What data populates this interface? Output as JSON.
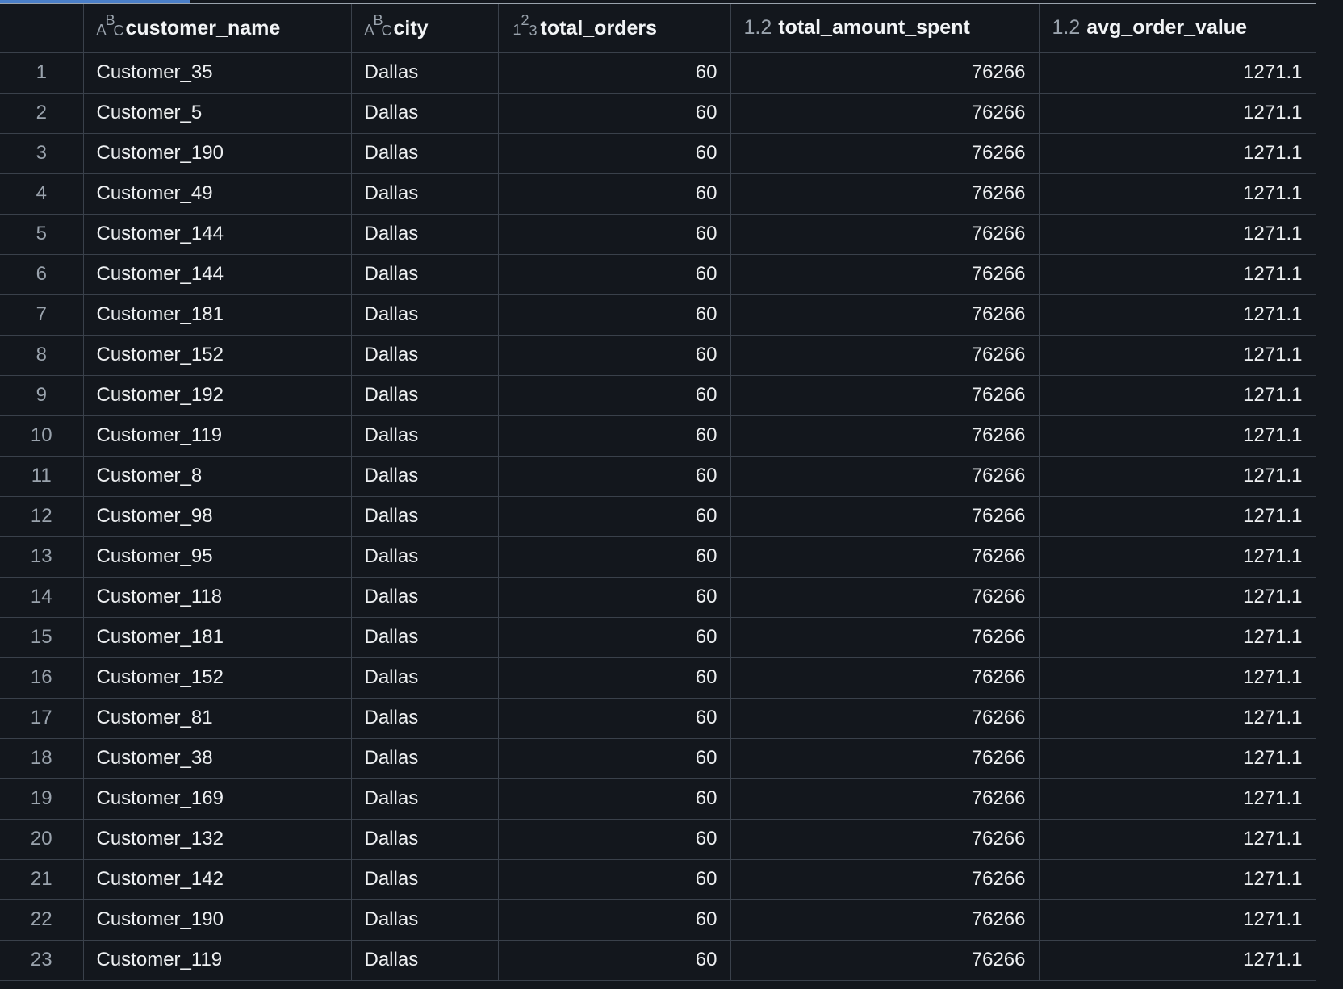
{
  "columns": [
    {
      "name": "customer_name",
      "type_icon": "text-type-icon",
      "type_label": "ABC"
    },
    {
      "name": "city",
      "type_icon": "text-type-icon",
      "type_label": "ABC"
    },
    {
      "name": "total_orders",
      "type_icon": "integer-type-icon",
      "type_label": "123"
    },
    {
      "name": "total_amount_spent",
      "type_icon": "decimal-type-icon",
      "type_label": "1.2"
    },
    {
      "name": "avg_order_value",
      "type_icon": "decimal-type-icon",
      "type_label": "1.2"
    }
  ],
  "rows": [
    {
      "idx": "1",
      "customer_name": "Customer_35",
      "city": "Dallas",
      "total_orders": "60",
      "total_amount_spent": "76266",
      "avg_order_value": "1271.1"
    },
    {
      "idx": "2",
      "customer_name": "Customer_5",
      "city": "Dallas",
      "total_orders": "60",
      "total_amount_spent": "76266",
      "avg_order_value": "1271.1"
    },
    {
      "idx": "3",
      "customer_name": "Customer_190",
      "city": "Dallas",
      "total_orders": "60",
      "total_amount_spent": "76266",
      "avg_order_value": "1271.1"
    },
    {
      "idx": "4",
      "customer_name": "Customer_49",
      "city": "Dallas",
      "total_orders": "60",
      "total_amount_spent": "76266",
      "avg_order_value": "1271.1"
    },
    {
      "idx": "5",
      "customer_name": "Customer_144",
      "city": "Dallas",
      "total_orders": "60",
      "total_amount_spent": "76266",
      "avg_order_value": "1271.1"
    },
    {
      "idx": "6",
      "customer_name": "Customer_144",
      "city": "Dallas",
      "total_orders": "60",
      "total_amount_spent": "76266",
      "avg_order_value": "1271.1"
    },
    {
      "idx": "7",
      "customer_name": "Customer_181",
      "city": "Dallas",
      "total_orders": "60",
      "total_amount_spent": "76266",
      "avg_order_value": "1271.1"
    },
    {
      "idx": "8",
      "customer_name": "Customer_152",
      "city": "Dallas",
      "total_orders": "60",
      "total_amount_spent": "76266",
      "avg_order_value": "1271.1"
    },
    {
      "idx": "9",
      "customer_name": "Customer_192",
      "city": "Dallas",
      "total_orders": "60",
      "total_amount_spent": "76266",
      "avg_order_value": "1271.1"
    },
    {
      "idx": "10",
      "customer_name": "Customer_119",
      "city": "Dallas",
      "total_orders": "60",
      "total_amount_spent": "76266",
      "avg_order_value": "1271.1"
    },
    {
      "idx": "11",
      "customer_name": "Customer_8",
      "city": "Dallas",
      "total_orders": "60",
      "total_amount_spent": "76266",
      "avg_order_value": "1271.1"
    },
    {
      "idx": "12",
      "customer_name": "Customer_98",
      "city": "Dallas",
      "total_orders": "60",
      "total_amount_spent": "76266",
      "avg_order_value": "1271.1"
    },
    {
      "idx": "13",
      "customer_name": "Customer_95",
      "city": "Dallas",
      "total_orders": "60",
      "total_amount_spent": "76266",
      "avg_order_value": "1271.1"
    },
    {
      "idx": "14",
      "customer_name": "Customer_118",
      "city": "Dallas",
      "total_orders": "60",
      "total_amount_spent": "76266",
      "avg_order_value": "1271.1"
    },
    {
      "idx": "15",
      "customer_name": "Customer_181",
      "city": "Dallas",
      "total_orders": "60",
      "total_amount_spent": "76266",
      "avg_order_value": "1271.1"
    },
    {
      "idx": "16",
      "customer_name": "Customer_152",
      "city": "Dallas",
      "total_orders": "60",
      "total_amount_spent": "76266",
      "avg_order_value": "1271.1"
    },
    {
      "idx": "17",
      "customer_name": "Customer_81",
      "city": "Dallas",
      "total_orders": "60",
      "total_amount_spent": "76266",
      "avg_order_value": "1271.1"
    },
    {
      "idx": "18",
      "customer_name": "Customer_38",
      "city": "Dallas",
      "total_orders": "60",
      "total_amount_spent": "76266",
      "avg_order_value": "1271.1"
    },
    {
      "idx": "19",
      "customer_name": "Customer_169",
      "city": "Dallas",
      "total_orders": "60",
      "total_amount_spent": "76266",
      "avg_order_value": "1271.1"
    },
    {
      "idx": "20",
      "customer_name": "Customer_132",
      "city": "Dallas",
      "total_orders": "60",
      "total_amount_spent": "76266",
      "avg_order_value": "1271.1"
    },
    {
      "idx": "21",
      "customer_name": "Customer_142",
      "city": "Dallas",
      "total_orders": "60",
      "total_amount_spent": "76266",
      "avg_order_value": "1271.1"
    },
    {
      "idx": "22",
      "customer_name": "Customer_190",
      "city": "Dallas",
      "total_orders": "60",
      "total_amount_spent": "76266",
      "avg_order_value": "1271.1"
    },
    {
      "idx": "23",
      "customer_name": "Customer_119",
      "city": "Dallas",
      "total_orders": "60",
      "total_amount_spent": "76266",
      "avg_order_value": "1271.1"
    }
  ],
  "colors": {
    "background": "#13171d",
    "grid_line": "#3a414b",
    "accent": "#4a7fc9",
    "muted_text": "#9aa3ad",
    "text": "#eef0f2"
  }
}
